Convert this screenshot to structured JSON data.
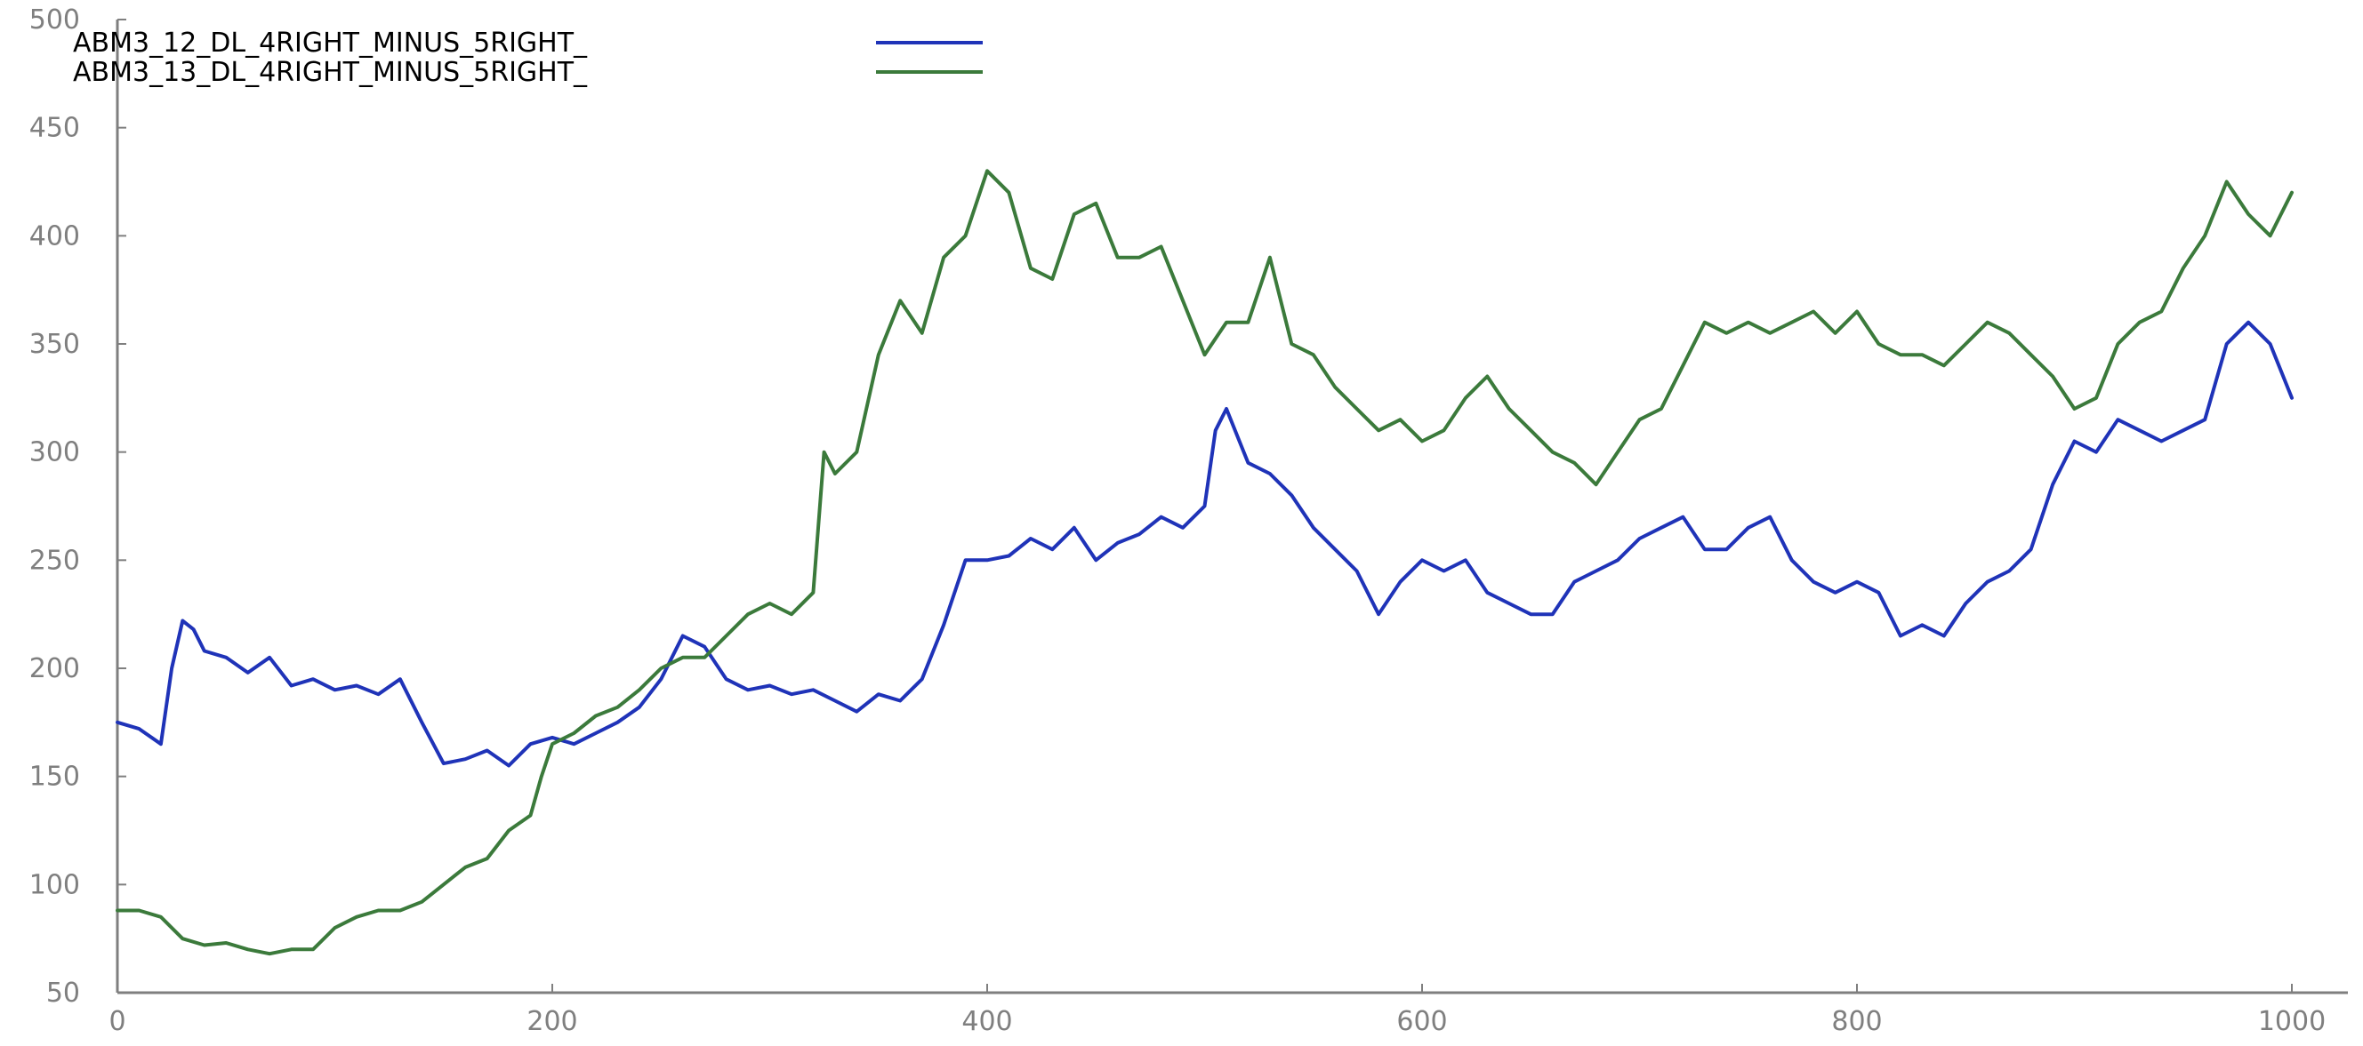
{
  "chart_data": {
    "type": "line",
    "title": "",
    "xlabel": "",
    "ylabel": "",
    "xlim": [
      0,
      1000
    ],
    "ylim": [
      50,
      500
    ],
    "xticks": [
      "0",
      "200",
      "400",
      "600",
      "800",
      "1000"
    ],
    "yticks": [
      "50",
      "100",
      "150",
      "200",
      "250",
      "300",
      "350",
      "400",
      "450",
      "500"
    ],
    "grid": false,
    "legend_position": "top-left",
    "series": [
      {
        "name": "ABM3_12_DL_4RIGHT_MINUS_5RIGHT_",
        "color": "#1f33b8",
        "x": [
          0,
          10,
          20,
          25,
          30,
          35,
          40,
          50,
          60,
          70,
          80,
          90,
          100,
          110,
          120,
          130,
          140,
          150,
          160,
          170,
          180,
          190,
          200,
          210,
          220,
          230,
          240,
          250,
          260,
          270,
          280,
          290,
          300,
          310,
          320,
          330,
          340,
          350,
          360,
          370,
          380,
          390,
          400,
          410,
          420,
          430,
          440,
          450,
          460,
          470,
          480,
          490,
          500,
          505,
          510,
          520,
          530,
          540,
          550,
          560,
          570,
          580,
          590,
          600,
          610,
          620,
          630,
          640,
          650,
          660,
          670,
          680,
          690,
          700,
          710,
          720,
          730,
          740,
          750,
          760,
          770,
          780,
          790,
          800,
          810,
          820,
          830,
          840,
          850,
          860,
          870,
          880,
          890,
          900,
          910,
          920,
          930,
          940,
          950,
          960,
          970,
          980,
          990,
          1000
        ],
        "y": [
          175,
          172,
          165,
          200,
          222,
          218,
          208,
          205,
          198,
          205,
          192,
          195,
          190,
          192,
          188,
          195,
          175,
          156,
          158,
          162,
          155,
          165,
          168,
          165,
          170,
          175,
          182,
          195,
          215,
          210,
          195,
          190,
          192,
          188,
          190,
          185,
          180,
          188,
          185,
          195,
          220,
          250,
          250,
          252,
          260,
          255,
          265,
          250,
          258,
          262,
          270,
          265,
          275,
          310,
          320,
          295,
          290,
          280,
          265,
          255,
          245,
          225,
          240,
          250,
          245,
          250,
          235,
          230,
          225,
          225,
          240,
          245,
          250,
          260,
          265,
          270,
          255,
          255,
          265,
          270,
          250,
          240,
          235,
          240,
          235,
          215,
          220,
          215,
          230,
          240,
          245,
          255,
          285,
          305,
          300,
          315,
          310,
          305,
          310,
          315,
          350,
          360,
          350,
          325
        ]
      },
      {
        "name": "ABM3_13_DL_4RIGHT_MINUS_5RIGHT_",
        "color": "#3b7a3b",
        "x": [
          0,
          10,
          20,
          30,
          40,
          50,
          60,
          70,
          80,
          90,
          100,
          110,
          120,
          130,
          140,
          150,
          160,
          170,
          180,
          190,
          195,
          200,
          210,
          220,
          230,
          240,
          250,
          260,
          270,
          280,
          290,
          300,
          310,
          320,
          325,
          330,
          340,
          350,
          360,
          370,
          380,
          390,
          400,
          410,
          420,
          430,
          440,
          450,
          460,
          470,
          480,
          490,
          500,
          510,
          520,
          530,
          540,
          550,
          560,
          570,
          580,
          590,
          600,
          610,
          620,
          630,
          640,
          650,
          660,
          670,
          680,
          690,
          700,
          710,
          720,
          730,
          740,
          750,
          760,
          770,
          780,
          790,
          800,
          810,
          820,
          830,
          840,
          850,
          860,
          870,
          880,
          890,
          900,
          910,
          920,
          930,
          940,
          950,
          960,
          970,
          980,
          990,
          1000
        ],
        "y": [
          88,
          88,
          85,
          75,
          72,
          73,
          70,
          68,
          70,
          70,
          80,
          85,
          88,
          88,
          92,
          100,
          108,
          112,
          125,
          132,
          150,
          165,
          170,
          178,
          182,
          190,
          200,
          205,
          205,
          215,
          225,
          230,
          225,
          235,
          300,
          290,
          300,
          345,
          370,
          355,
          390,
          400,
          430,
          420,
          385,
          380,
          410,
          415,
          390,
          390,
          395,
          370,
          345,
          360,
          360,
          390,
          350,
          345,
          330,
          320,
          310,
          315,
          305,
          310,
          325,
          335,
          320,
          310,
          300,
          295,
          285,
          300,
          315,
          320,
          340,
          360,
          355,
          360,
          355,
          360,
          365,
          355,
          365,
          350,
          345,
          345,
          340,
          350,
          360,
          355,
          345,
          335,
          320,
          325,
          350,
          360,
          365,
          385,
          400,
          425,
          410,
          400,
          420
        ]
      }
    ]
  }
}
